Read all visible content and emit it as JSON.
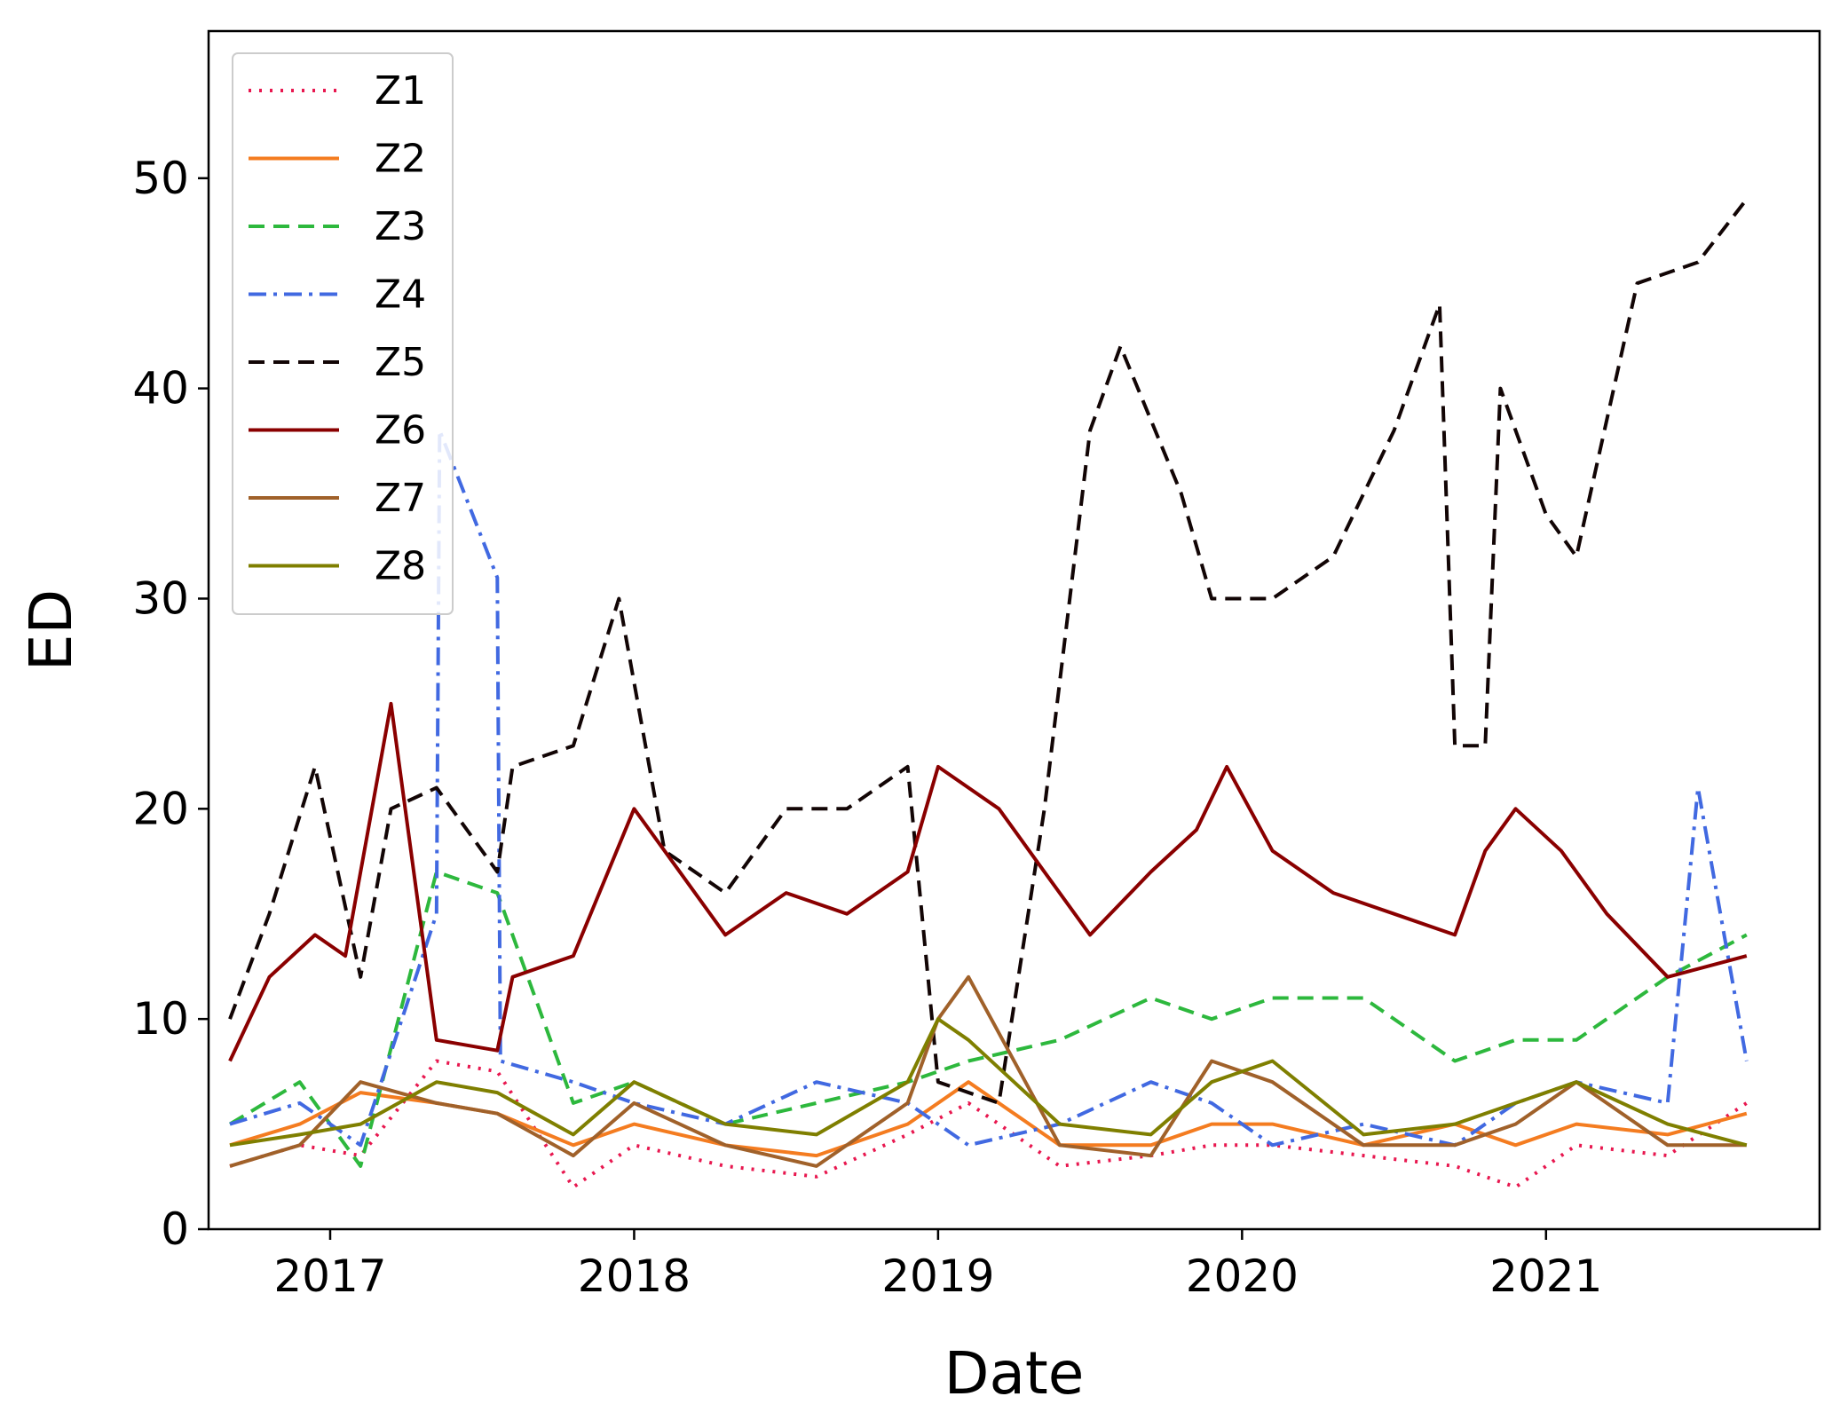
{
  "chart_data": {
    "type": "line",
    "title": "",
    "xlabel": "Date",
    "ylabel": "ED",
    "xlim": [
      2016.6,
      2021.9
    ],
    "ylim": [
      0,
      57
    ],
    "xticks": [
      {
        "value": 2017,
        "label": "2017"
      },
      {
        "value": 2018,
        "label": "2018"
      },
      {
        "value": 2019,
        "label": "2019"
      },
      {
        "value": 2020,
        "label": "2020"
      },
      {
        "value": 2021,
        "label": "2021"
      }
    ],
    "yticks": [
      {
        "value": 0,
        "label": "0"
      },
      {
        "value": 10,
        "label": "10"
      },
      {
        "value": 20,
        "label": "20"
      },
      {
        "value": 30,
        "label": "30"
      },
      {
        "value": 40,
        "label": "40"
      },
      {
        "value": 50,
        "label": "50"
      }
    ],
    "legend_position": "top-left",
    "grid": false,
    "series": [
      {
        "name": "Z1",
        "color": "#e8174f",
        "style": "dotted",
        "x": [
          2016.67,
          2016.9,
          2017.1,
          2017.35,
          2017.55,
          2017.8,
          2018.0,
          2018.3,
          2018.6,
          2018.9,
          2019.1,
          2019.4,
          2019.7,
          2019.9,
          2020.1,
          2020.4,
          2020.7,
          2020.9,
          2021.1,
          2021.4,
          2021.66
        ],
        "y": [
          3,
          4,
          3.5,
          8,
          7.5,
          2,
          4,
          3,
          2.5,
          4.5,
          6,
          3,
          3.5,
          4,
          4,
          3.5,
          3,
          2,
          4,
          3.5,
          6
        ]
      },
      {
        "name": "Z2",
        "color": "#f47c20",
        "style": "solid",
        "x": [
          2016.67,
          2016.9,
          2017.1,
          2017.35,
          2017.55,
          2017.8,
          2018.0,
          2018.3,
          2018.6,
          2018.9,
          2019.1,
          2019.4,
          2019.7,
          2019.9,
          2020.1,
          2020.4,
          2020.7,
          2020.9,
          2021.1,
          2021.4,
          2021.66
        ],
        "y": [
          4,
          5,
          6.5,
          6,
          5.5,
          4,
          5,
          4,
          3.5,
          5,
          7,
          4,
          4,
          5,
          5,
          4,
          5,
          4,
          5,
          4.5,
          5.5
        ]
      },
      {
        "name": "Z3",
        "color": "#2db83d",
        "style": "dashed",
        "x": [
          2016.67,
          2016.9,
          2017.1,
          2017.35,
          2017.55,
          2017.8,
          2018.0,
          2018.3,
          2018.6,
          2018.9,
          2019.1,
          2019.4,
          2019.7,
          2019.9,
          2020.1,
          2020.4,
          2020.7,
          2020.9,
          2021.1,
          2021.4,
          2021.66
        ],
        "y": [
          5,
          7,
          3,
          17,
          16,
          6,
          7,
          5,
          6,
          7,
          8,
          9,
          11,
          10,
          11,
          11,
          8,
          9,
          9,
          12,
          14
        ]
      },
      {
        "name": "Z4",
        "color": "#4169e1",
        "style": "dashdot",
        "x": [
          2016.67,
          2016.9,
          2017.1,
          2017.35,
          2017.36,
          2017.55,
          2017.56,
          2017.8,
          2018.0,
          2018.3,
          2018.6,
          2018.9,
          2019.1,
          2019.4,
          2019.7,
          2019.9,
          2020.1,
          2020.4,
          2020.7,
          2020.9,
          2021.1,
          2021.4,
          2021.5,
          2021.66
        ],
        "y": [
          5,
          6,
          4,
          15,
          38,
          31,
          8,
          7,
          6,
          5,
          7,
          6,
          4,
          5,
          7,
          6,
          4,
          5,
          4,
          6,
          7,
          6,
          21,
          8
        ]
      },
      {
        "name": "Z5",
        "color": "#120505",
        "style": "dashed",
        "x": [
          2016.67,
          2016.8,
          2016.95,
          2017.1,
          2017.2,
          2017.35,
          2017.55,
          2017.6,
          2017.8,
          2017.95,
          2018.1,
          2018.3,
          2018.5,
          2018.7,
          2018.9,
          2019.0,
          2019.2,
          2019.35,
          2019.5,
          2019.6,
          2019.8,
          2019.9,
          2020.1,
          2020.3,
          2020.5,
          2020.65,
          2020.7,
          2020.8,
          2020.85,
          2021.0,
          2021.1,
          2021.3,
          2021.5,
          2021.66
        ],
        "y": [
          10,
          15,
          22,
          12,
          20,
          21,
          17,
          22,
          23,
          30,
          18,
          16,
          20,
          20,
          22,
          7,
          6,
          20,
          38,
          42,
          35,
          30,
          30,
          32,
          38,
          44,
          23,
          23,
          40,
          34,
          32,
          45,
          46,
          49
        ]
      },
      {
        "name": "Z6",
        "color": "#8a0000",
        "style": "solid",
        "x": [
          2016.67,
          2016.8,
          2016.95,
          2017.05,
          2017.2,
          2017.35,
          2017.55,
          2017.6,
          2017.8,
          2018.0,
          2018.1,
          2018.3,
          2018.5,
          2018.7,
          2018.9,
          2019.0,
          2019.2,
          2019.35,
          2019.5,
          2019.7,
          2019.85,
          2019.95,
          2020.1,
          2020.3,
          2020.5,
          2020.7,
          2020.8,
          2020.9,
          2021.05,
          2021.2,
          2021.4,
          2021.66
        ],
        "y": [
          8,
          12,
          14,
          13,
          25,
          9,
          8.5,
          12,
          13,
          20,
          18,
          14,
          16,
          15,
          17,
          22,
          20,
          17,
          14,
          17,
          19,
          22,
          18,
          16,
          15,
          14,
          18,
          20,
          18,
          15,
          12,
          13
        ]
      },
      {
        "name": "Z7",
        "color": "#a0612a",
        "style": "solid",
        "x": [
          2016.67,
          2016.9,
          2017.1,
          2017.35,
          2017.55,
          2017.8,
          2018.0,
          2018.3,
          2018.6,
          2018.9,
          2019.0,
          2019.1,
          2019.4,
          2019.7,
          2019.9,
          2020.1,
          2020.4,
          2020.7,
          2020.9,
          2021.1,
          2021.4,
          2021.66
        ],
        "y": [
          3,
          4,
          7,
          6,
          5.5,
          3.5,
          6,
          4,
          3,
          6,
          10,
          12,
          4,
          3.5,
          8,
          7,
          4,
          4,
          5,
          7,
          4,
          4
        ]
      },
      {
        "name": "Z8",
        "color": "#7f7f00",
        "style": "solid",
        "x": [
          2016.67,
          2016.9,
          2017.1,
          2017.35,
          2017.55,
          2017.8,
          2018.0,
          2018.3,
          2018.6,
          2018.9,
          2019.0,
          2019.1,
          2019.4,
          2019.7,
          2019.9,
          2020.1,
          2020.4,
          2020.7,
          2020.9,
          2021.1,
          2021.4,
          2021.66
        ],
        "y": [
          4,
          4.5,
          5,
          7,
          6.5,
          4.5,
          7,
          5,
          4.5,
          7,
          10,
          9,
          5,
          4.5,
          7,
          8,
          4.5,
          5,
          6,
          7,
          5,
          4
        ]
      }
    ]
  }
}
